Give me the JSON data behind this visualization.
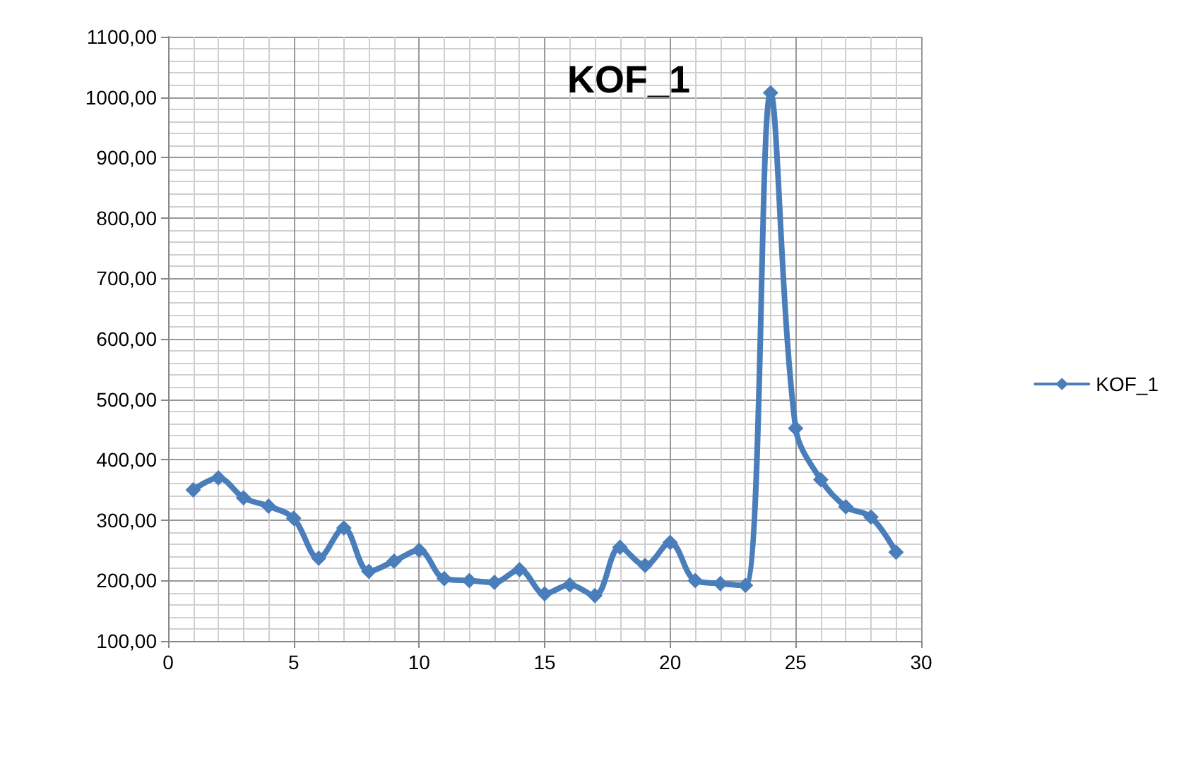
{
  "chart_data": {
    "type": "line",
    "title": "KOF_1",
    "x": [
      1,
      2,
      3,
      4,
      5,
      6,
      7,
      8,
      9,
      10,
      11,
      12,
      13,
      14,
      15,
      16,
      17,
      18,
      19,
      20,
      21,
      22,
      23,
      24,
      25,
      26,
      27,
      28,
      29
    ],
    "series": [
      {
        "name": "KOF_1",
        "color": "#4a7ebb",
        "values": [
          350,
          370,
          337,
          323,
          303,
          237,
          287,
          215,
          232,
          250,
          203,
          200,
          197,
          218,
          178,
          193,
          175,
          255,
          225,
          263,
          200,
          195,
          192,
          1007,
          452,
          367,
          322,
          305,
          247
        ]
      }
    ],
    "xlim": [
      0,
      30
    ],
    "xticks": [
      0,
      5,
      10,
      15,
      20,
      25,
      30
    ],
    "ylim": [
      100,
      1100
    ],
    "yticks": [
      {
        "value": 100,
        "label": "100,00"
      },
      {
        "value": 200,
        "label": "200,00"
      },
      {
        "value": 300,
        "label": "300,00"
      },
      {
        "value": 400,
        "label": "400,00"
      },
      {
        "value": 500,
        "label": "500,00"
      },
      {
        "value": 600,
        "label": "600,00"
      },
      {
        "value": 700,
        "label": "700,00"
      },
      {
        "value": 800,
        "label": "800,00"
      },
      {
        "value": 900,
        "label": "900,00"
      },
      {
        "value": 1000,
        "label": "1000,00"
      },
      {
        "value": 1100,
        "label": "1100,00"
      }
    ],
    "grid": true,
    "legend": "right",
    "marker": "diamond",
    "line_style": "solid"
  }
}
